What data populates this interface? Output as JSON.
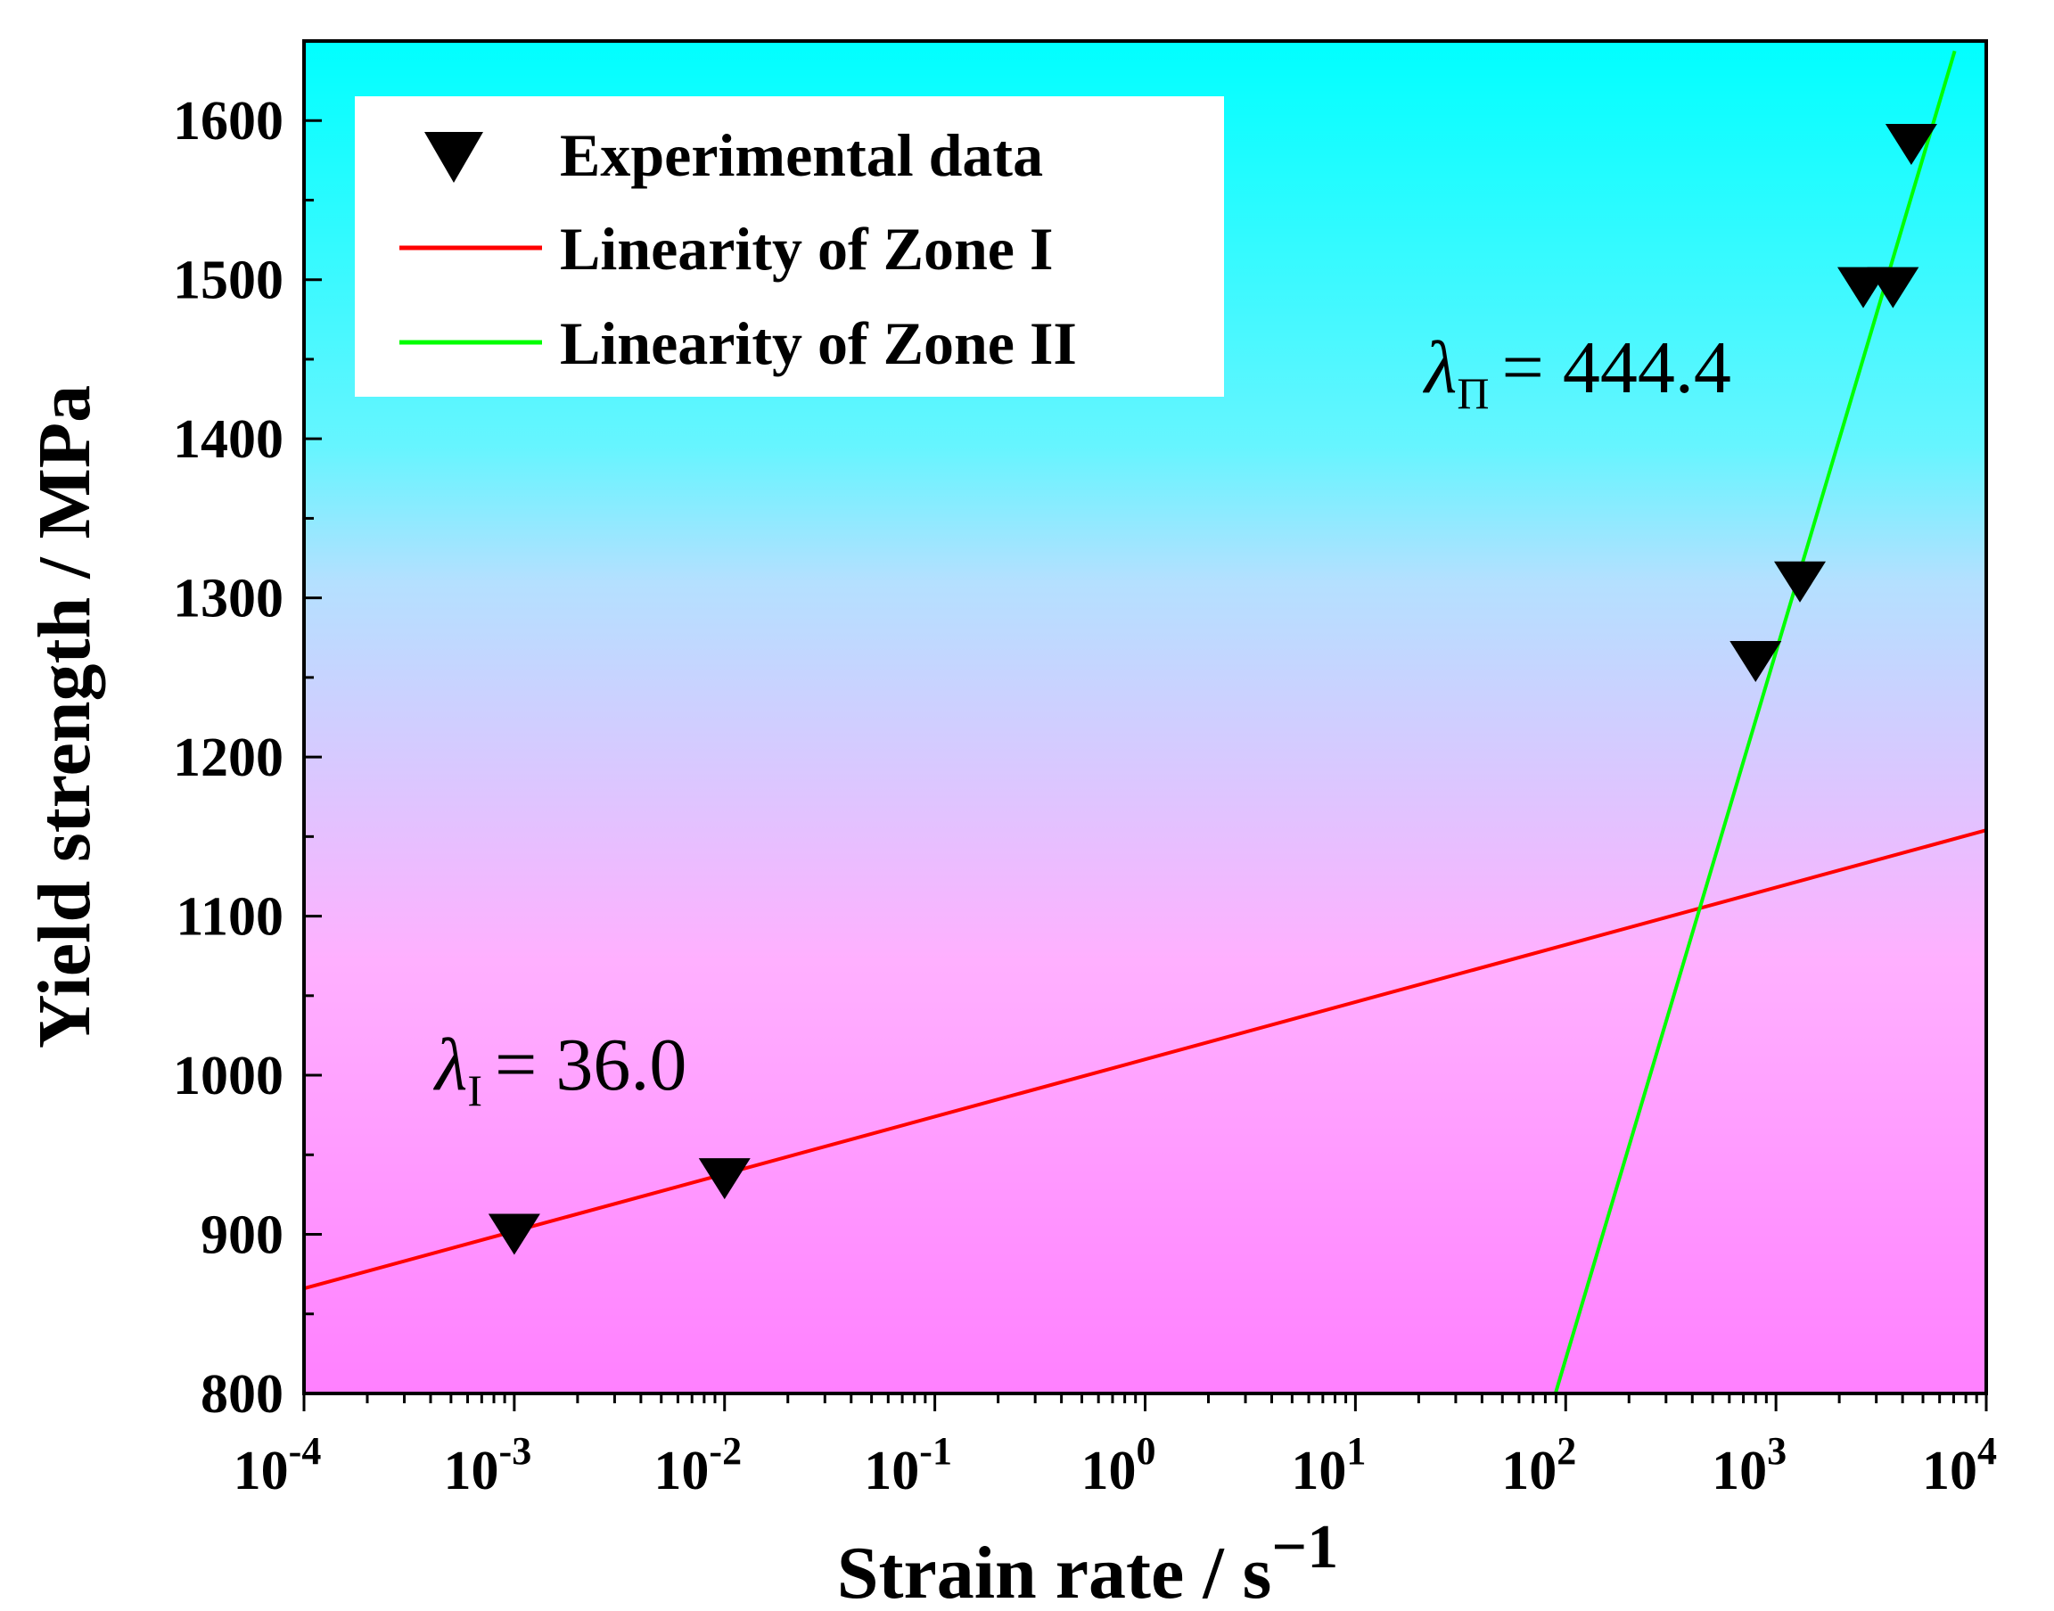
{
  "chart_data": {
    "type": "scatter",
    "title": "",
    "xlabel": "Strain rate / s",
    "xlabel_sup": "−1",
    "ylabel": "Yield strength / MPa",
    "xscale": "log",
    "xlim_exp": [
      -4,
      4
    ],
    "ylim": [
      800,
      1650
    ],
    "x_tick_labels": [
      {
        "exp": -4,
        "base": "10",
        "sup": "-4"
      },
      {
        "exp": -3,
        "base": "10",
        "sup": "-3"
      },
      {
        "exp": -2,
        "base": "10",
        "sup": "-2"
      },
      {
        "exp": -1,
        "base": "10",
        "sup": "-1"
      },
      {
        "exp": 0,
        "base": "10",
        "sup": "0"
      },
      {
        "exp": 1,
        "base": "10",
        "sup": "1"
      },
      {
        "exp": 2,
        "base": "10",
        "sup": "2"
      },
      {
        "exp": 3,
        "base": "10",
        "sup": "3"
      },
      {
        "exp": 4,
        "base": "10",
        "sup": "4"
      }
    ],
    "y_tick_labels": [
      {
        "value": 800,
        "label": "800"
      },
      {
        "value": 900,
        "label": "900"
      },
      {
        "value": 1000,
        "label": "1000"
      },
      {
        "value": 1100,
        "label": "1100"
      },
      {
        "value": 1200,
        "label": "1200"
      },
      {
        "value": 1300,
        "label": "1300"
      },
      {
        "value": 1400,
        "label": "1400"
      },
      {
        "value": 1500,
        "label": "1500"
      },
      {
        "value": 1600,
        "label": "1600"
      }
    ],
    "background_gradient": [
      "#00ffff",
      "#ff80ff"
    ],
    "series": [
      {
        "name": "Experimental data",
        "kind": "scatter",
        "marker": "down-triangle",
        "color": "#000000",
        "x": [
          0.001,
          0.01,
          800,
          1300,
          2600,
          3600,
          4400
        ],
        "y": [
          900,
          935,
          1260,
          1310,
          1495,
          1495,
          1585
        ]
      },
      {
        "name": "Linearity of Zone I",
        "kind": "line",
        "color": "#ff0000",
        "slope_per_decade": 36.0,
        "y_at_exp0": 1010,
        "x_range_exp": [
          -4,
          4
        ]
      },
      {
        "name": "Linearity of Zone II",
        "kind": "line",
        "color": "#00ff00",
        "slope_per_decade": 444.4,
        "y_at_exp3": 1266,
        "x_range_exp": [
          1.9,
          3.85
        ]
      }
    ],
    "legend": {
      "position": "top-left",
      "items": [
        {
          "label": "Experimental data",
          "kind": "marker"
        },
        {
          "label": "Linearity of Zone I",
          "kind": "line",
          "color": "#ff0000"
        },
        {
          "label": "Linearity of Zone II",
          "kind": "line",
          "color": "#00ff00"
        }
      ]
    },
    "annotations": [
      {
        "id": "zone1",
        "symbol": "λ",
        "sub": "I",
        "text": "= 36.0",
        "anchor_exp": -3.2,
        "anchor_y": 1000
      },
      {
        "id": "zone2",
        "symbol": "λ",
        "sub": "Π",
        "text": "= 444.4",
        "anchor_exp": 1.35,
        "anchor_y": 1440
      }
    ]
  }
}
